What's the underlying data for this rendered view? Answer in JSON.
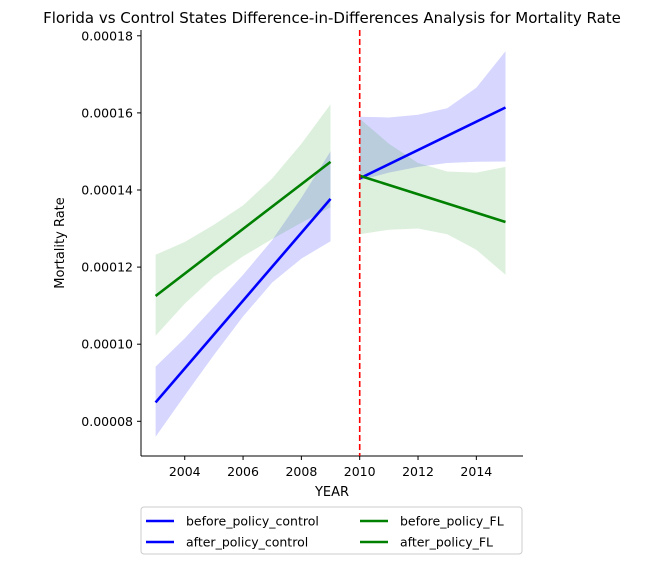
{
  "chart_data": {
    "type": "line",
    "title": "Florida vs Control States Difference-in-Differences Analysis for Mortality Rate",
    "xlabel": "YEAR",
    "ylabel": "Mortality Rate",
    "xlim": [
      2002.5,
      2015.6
    ],
    "ylim": [
      7.1e-05,
      0.0001815
    ],
    "xticks": [
      2004,
      2006,
      2008,
      2010,
      2012,
      2014
    ],
    "xtick_labels": [
      "2004",
      "2006",
      "2008",
      "2010",
      "2012",
      "2014"
    ],
    "yticks": [
      8e-05,
      0.0001,
      0.00012,
      0.00014,
      0.00016,
      0.00018
    ],
    "ytick_labels": [
      "0.00008",
      "0.00010",
      "0.00012",
      "0.00014",
      "0.00016",
      "0.00018"
    ],
    "policy_line_x": 2010,
    "policy_line_color": "#ff0000",
    "series": [
      {
        "name": "before_policy_control",
        "color": "#0000ff",
        "band_color": "#0000ff",
        "x": [
          2003,
          2009
        ],
        "y": [
          8.49e-05,
          0.0001377
        ],
        "ci_x": [
          2003,
          2004,
          2005,
          2006,
          2007,
          2008,
          2009
        ],
        "ci_lower": [
          7.6e-05,
          8.67e-05,
          9.72e-05,
          0.0001072,
          0.000116,
          0.0001222,
          0.0001267
        ],
        "ci_upper": [
          9.42e-05,
          0.0001015,
          0.0001097,
          0.000118,
          0.000127,
          0.000138,
          0.00015
        ]
      },
      {
        "name": "after_policy_control",
        "color": "#0000ff",
        "band_color": "#0000ff",
        "x": [
          2010,
          2015
        ],
        "y": [
          0.000143,
          0.0001614
        ],
        "ci_x": [
          2010,
          2011,
          2012,
          2013,
          2014,
          2015
        ],
        "ci_lower": [
          0.0001425,
          0.0001445,
          0.000146,
          0.000147,
          0.0001473,
          0.0001474
        ],
        "ci_upper": [
          0.000159,
          0.0001588,
          0.0001595,
          0.0001612,
          0.0001665,
          0.000176
        ]
      },
      {
        "name": "before_policy_FL",
        "color": "#008000",
        "band_color": "#2ca02c",
        "x": [
          2003,
          2009
        ],
        "y": [
          0.0001125,
          0.0001473
        ],
        "ci_x": [
          2003,
          2004,
          2005,
          2006,
          2007,
          2008,
          2009
        ],
        "ci_lower": [
          0.0001022,
          0.0001105,
          0.0001175,
          0.0001228,
          0.0001273,
          0.0001315,
          0.0001355
        ],
        "ci_upper": [
          0.0001232,
          0.0001265,
          0.000131,
          0.000136,
          0.000143,
          0.000152,
          0.0001622
        ]
      },
      {
        "name": "after_policy_FL",
        "color": "#008000",
        "band_color": "#2ca02c",
        "x": [
          2010,
          2015
        ],
        "y": [
          0.0001437,
          0.0001317
        ],
        "ci_x": [
          2010,
          2011,
          2012,
          2013,
          2014,
          2015
        ],
        "ci_lower": [
          0.0001285,
          0.0001297,
          0.00013,
          0.0001285,
          0.0001245,
          0.000118
        ],
        "ci_upper": [
          0.0001585,
          0.000152,
          0.000147,
          0.0001448,
          0.0001445,
          0.000146
        ]
      }
    ],
    "legend": {
      "placement": "bottom-center",
      "columns": 2,
      "entries": [
        "before_policy_control",
        "after_policy_control",
        "before_policy_FL",
        "after_policy_FL"
      ]
    },
    "grid": false
  }
}
